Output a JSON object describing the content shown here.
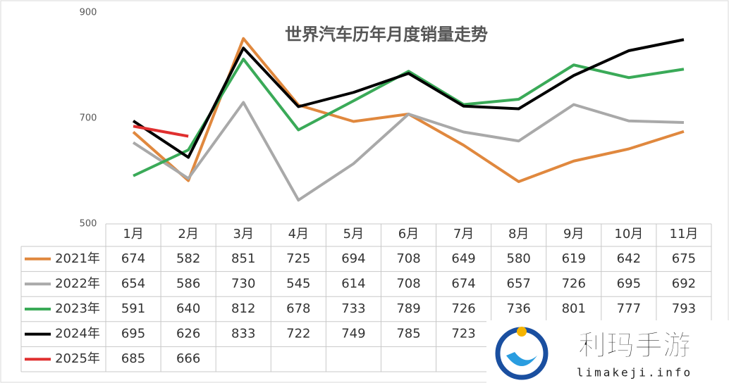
{
  "chart_data": {
    "type": "line",
    "title": "世界汽车历年月度销量走势",
    "categories": [
      "1月",
      "2月",
      "3月",
      "4月",
      "5月",
      "6月",
      "7月",
      "8月",
      "9月",
      "10月",
      "11月"
    ],
    "series": [
      {
        "name": "2021年",
        "color": "#e0883e",
        "values": [
          674,
          582,
          851,
          725,
          694,
          708,
          649,
          580,
          619,
          642,
          675
        ]
      },
      {
        "name": "2022年",
        "color": "#a9a9a9",
        "values": [
          654,
          586,
          730,
          545,
          614,
          708,
          674,
          657,
          726,
          695,
          692
        ]
      },
      {
        "name": "2023年",
        "color": "#3aaa58",
        "values": [
          591,
          640,
          812,
          678,
          733,
          789,
          726,
          736,
          801,
          777,
          793
        ]
      },
      {
        "name": "2024年",
        "color": "#000000",
        "values": [
          695,
          626,
          833,
          722,
          749,
          785,
          723,
          718,
          781,
          828,
          849
        ]
      },
      {
        "name": "2025年",
        "color": "#e03030",
        "values": [
          685,
          666,
          null,
          null,
          null,
          null,
          null,
          null,
          null,
          null,
          null
        ]
      }
    ],
    "ylim": [
      500,
      900
    ],
    "yticks": [
      500,
      700,
      900
    ],
    "grid": false
  },
  "watermark": {
    "title": "利玛手游",
    "url": "limakeji.info"
  }
}
